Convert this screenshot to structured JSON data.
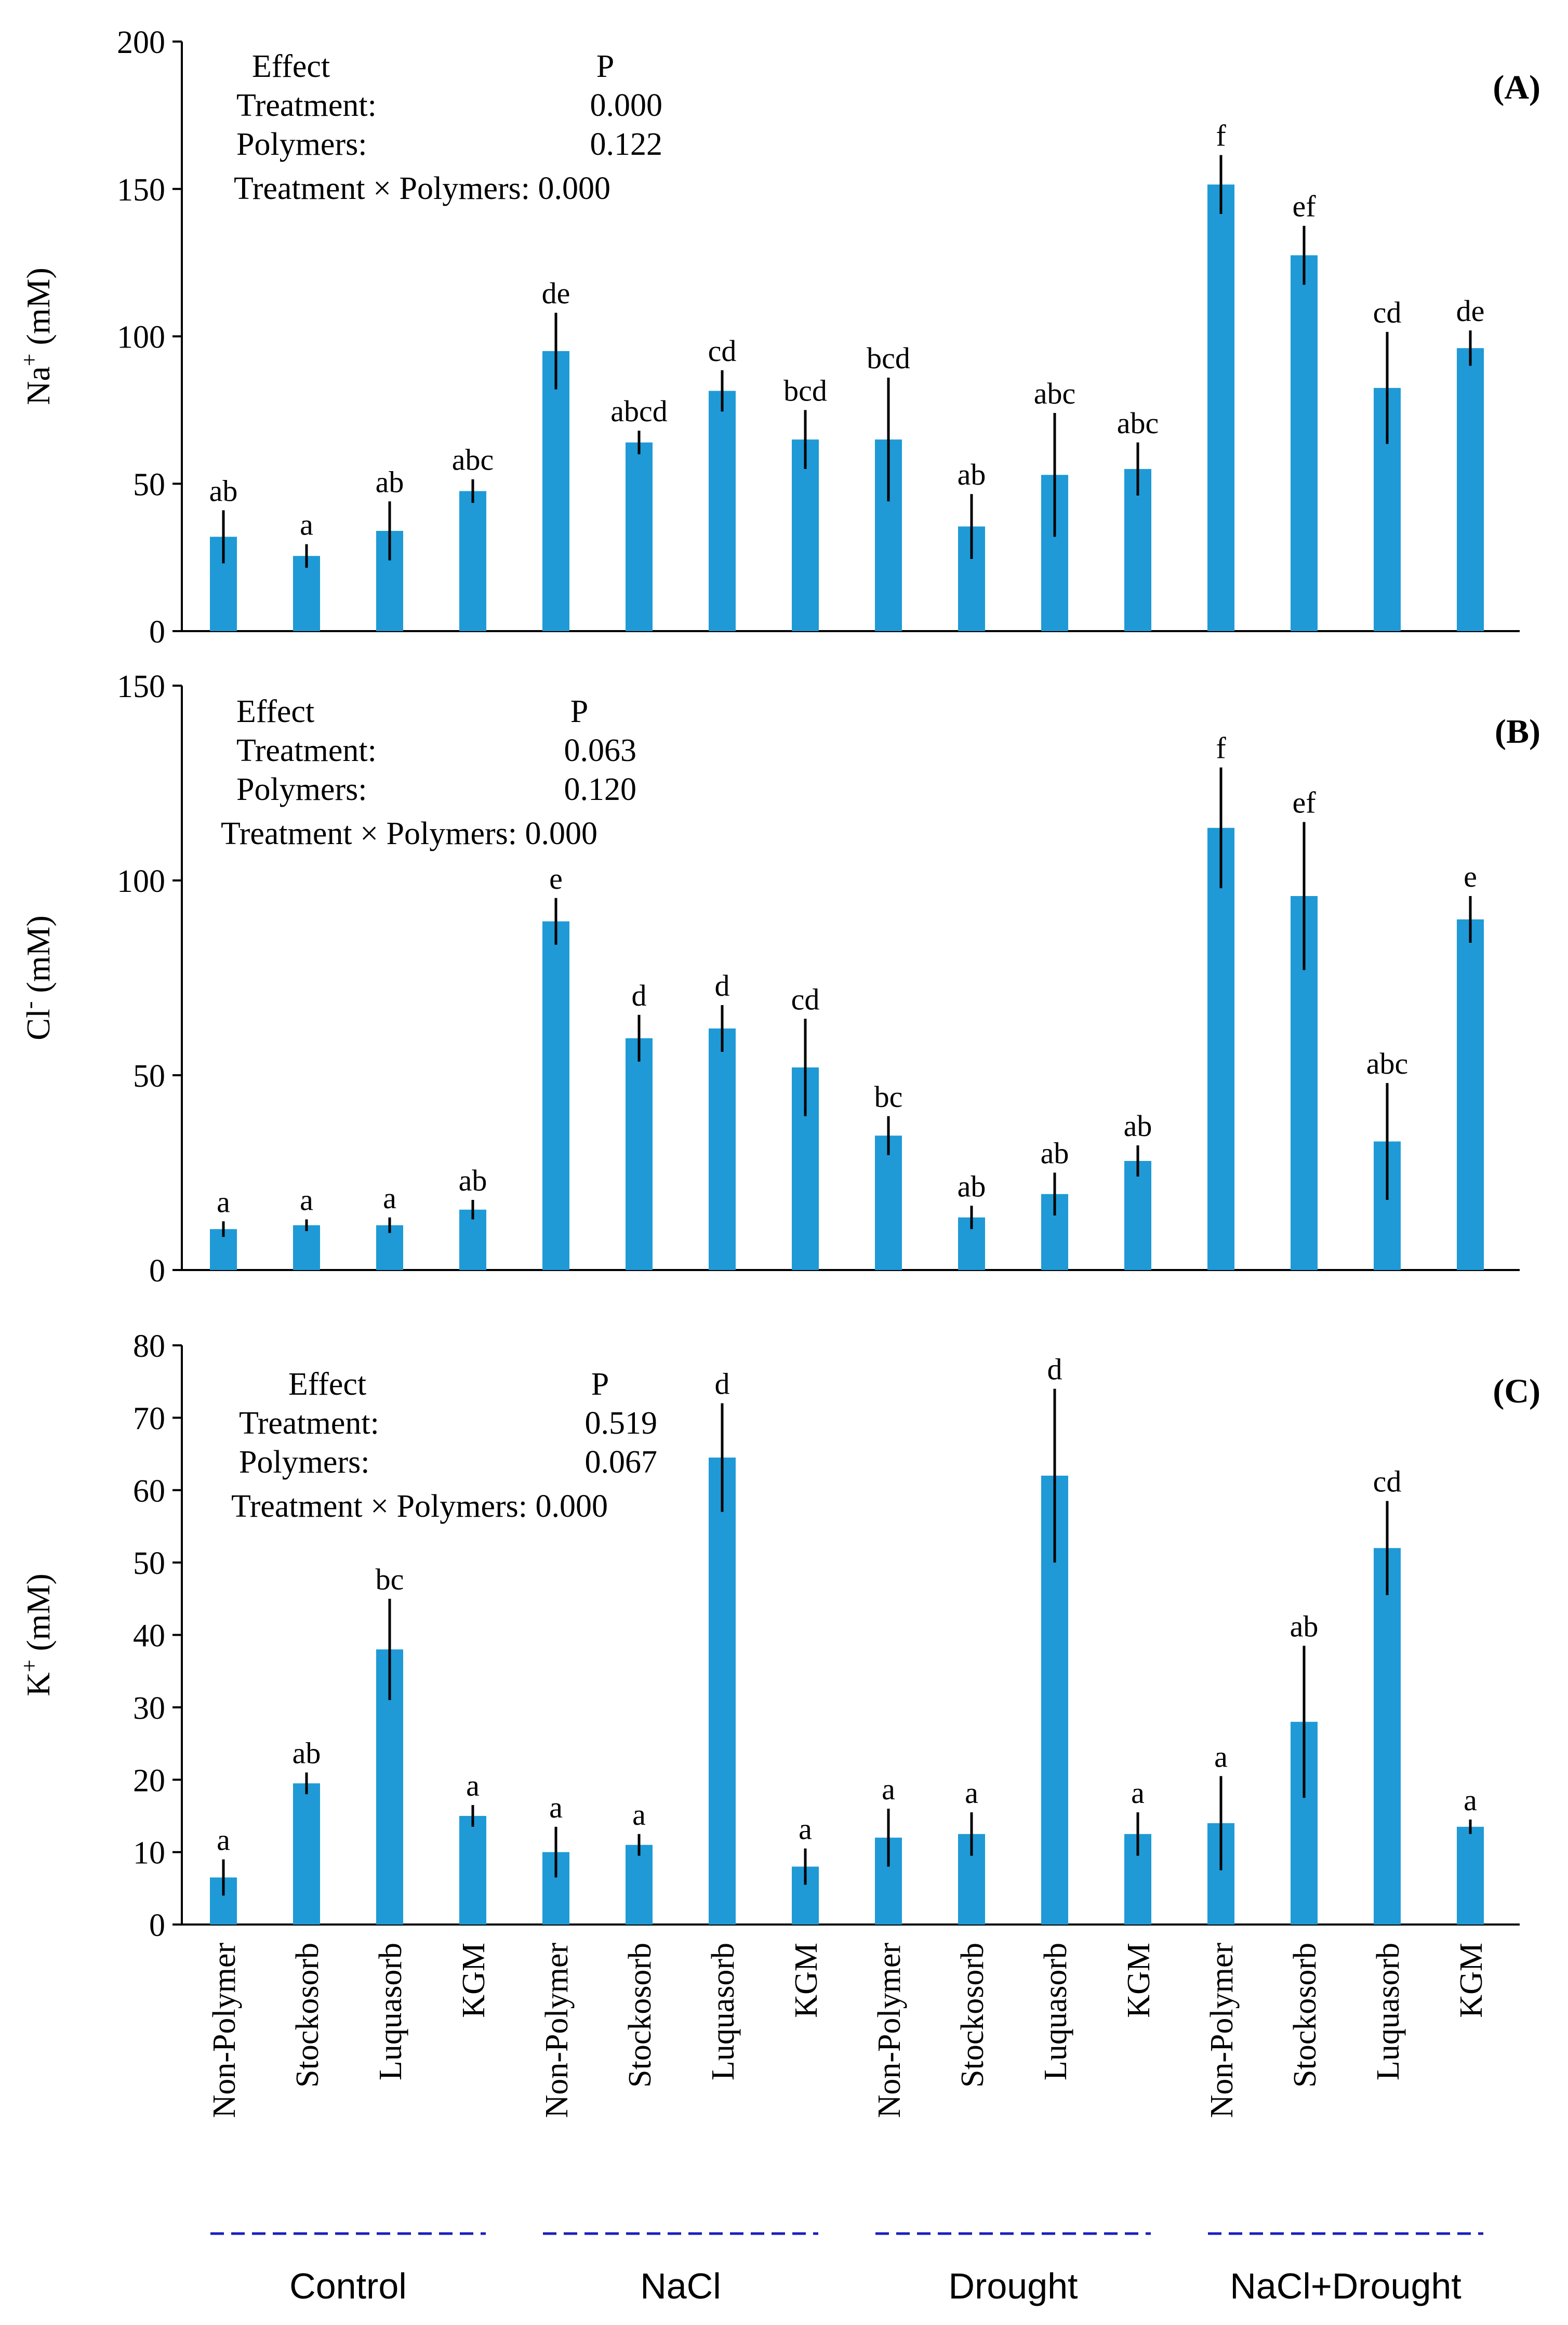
{
  "style": {
    "bar_color": "#1f9ad6",
    "error_color": "#000000",
    "group_line_color": "#1a1fbf"
  },
  "categories": [
    "Non-Polymer",
    "Stockosorb",
    "Luquasorb",
    "KGM",
    "Non-Polymer",
    "Stockosorb",
    "Luquasorb",
    "KGM",
    "Non-Polymer",
    "Stockosorb",
    "Luquasorb",
    "KGM",
    "Non-Polymer",
    "Stockosorb",
    "Luquasorb",
    "KGM"
  ],
  "groups": [
    "Control",
    "NaCl",
    "Drought",
    "NaCl+Drought"
  ],
  "chart_data": [
    {
      "type": "bar",
      "panel_label": "(A)",
      "ylabel_main": "Na",
      "ylabel_sup": "+",
      "ylabel_unit": " (mM)",
      "ylim": [
        0,
        200
      ],
      "ticks": [
        0,
        50,
        100,
        150,
        200
      ],
      "values": [
        32,
        25.5,
        34,
        47.5,
        95,
        64,
        81.5,
        65,
        65,
        35.5,
        53,
        55,
        151.5,
        127.5,
        82.5,
        96
      ],
      "errors": [
        9,
        4,
        10,
        4,
        13,
        4,
        7,
        10,
        21,
        11,
        21,
        9,
        10,
        10,
        19,
        6
      ],
      "letters": [
        "ab",
        "a",
        "ab",
        "abc",
        "de",
        "abcd",
        "cd",
        "bcd",
        "bcd",
        "ab",
        "abc",
        "abc",
        "f",
        "ef",
        "cd",
        "de"
      ],
      "effects": {
        "header_effect": "Effect",
        "header_p": "P",
        "treatment": "Treatment:",
        "treatment_p": "0.000",
        "polymers": "Polymers:",
        "polymers_p": "0.122",
        "interaction": "Treatment × Polymers: 0.000"
      }
    },
    {
      "type": "bar",
      "panel_label": "(B)",
      "ylabel_main": "Cl",
      "ylabel_sup": "-",
      "ylabel_unit": " (mM)",
      "ylim": [
        0,
        150
      ],
      "ticks": [
        0,
        50,
        100,
        150
      ],
      "values": [
        10.5,
        11.5,
        11.5,
        15.5,
        89.5,
        59.5,
        62,
        52,
        34.5,
        13.5,
        19.5,
        28,
        113.5,
        96,
        33,
        90
      ],
      "errors": [
        2,
        1.5,
        2,
        2.5,
        6,
        6,
        6,
        12.5,
        5,
        3,
        5.5,
        4,
        15.5,
        19,
        15,
        6
      ],
      "letters": [
        "a",
        "a",
        "a",
        "ab",
        "e",
        "d",
        "d",
        "cd",
        "bc",
        "ab",
        "ab",
        "ab",
        "f",
        "ef",
        "abc",
        "e"
      ],
      "effects": {
        "header_effect": "Effect",
        "header_p": "P",
        "treatment": "Treatment:",
        "treatment_p": "0.063",
        "polymers": "Polymers:",
        "polymers_p": "0.120",
        "interaction": "Treatment × Polymers: 0.000"
      }
    },
    {
      "type": "bar",
      "panel_label": "(C)",
      "ylabel_main": "K",
      "ylabel_sup": "+",
      "ylabel_unit": " (mM)",
      "ylim": [
        0,
        80
      ],
      "ticks": [
        0,
        10,
        20,
        30,
        40,
        50,
        60,
        70,
        80
      ],
      "values": [
        6.5,
        19.5,
        38,
        15,
        10,
        11,
        64.5,
        8,
        12,
        12.5,
        62,
        12.5,
        14,
        28,
        52,
        13.5
      ],
      "errors": [
        2.5,
        1.5,
        7,
        1.5,
        3.5,
        1.5,
        7.5,
        2.5,
        4,
        3,
        12,
        3,
        6.5,
        10.5,
        6.5,
        1
      ],
      "letters": [
        "a",
        "ab",
        "bc",
        "a",
        "a",
        "a",
        "d",
        "a",
        "a",
        "a",
        "d",
        "a",
        "a",
        "ab",
        "cd",
        "a"
      ],
      "effects": {
        "header_effect": "Effect",
        "header_p": "P",
        "treatment": "Treatment:",
        "treatment_p": "0.519",
        "polymers": "Polymers:",
        "polymers_p": "0.067",
        "interaction": "Treatment × Polymers: 0.000"
      }
    }
  ]
}
